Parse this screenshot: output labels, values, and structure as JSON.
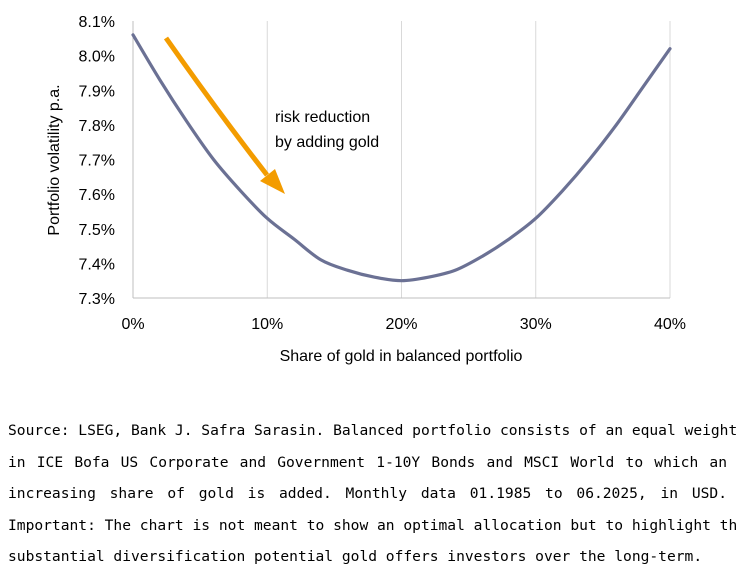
{
  "chart_data": {
    "type": "line",
    "xlabel": "Share of gold in balanced portfolio",
    "ylabel": "Portfolio volatility p.a.",
    "xlim": [
      0,
      40
    ],
    "ylim": [
      7.3,
      8.1
    ],
    "x_ticks": [
      0,
      10,
      20,
      30,
      40
    ],
    "x_tick_labels": [
      "0%",
      "10%",
      "20%",
      "30%",
      "40%"
    ],
    "y_ticks": [
      7.3,
      7.4,
      7.5,
      7.6,
      7.7,
      7.8,
      7.9,
      8.0,
      8.1
    ],
    "y_tick_labels": [
      "7.3%",
      "7.4%",
      "7.5%",
      "7.6%",
      "7.7%",
      "7.8%",
      "7.9%",
      "8.0%",
      "8.1%"
    ],
    "grid": "vertical",
    "series": [
      {
        "x": [
          0,
          2,
          4,
          6,
          8,
          10,
          12,
          14,
          16,
          18,
          20,
          22,
          24,
          26,
          28,
          30,
          32,
          34,
          36,
          38,
          40
        ],
        "y": [
          8.06,
          7.93,
          7.81,
          7.7,
          7.61,
          7.53,
          7.47,
          7.41,
          7.38,
          7.36,
          7.35,
          7.36,
          7.38,
          7.42,
          7.47,
          7.53,
          7.61,
          7.7,
          7.8,
          7.91,
          8.02
        ],
        "color": "#6b7194"
      }
    ],
    "annotation": {
      "text_lines": [
        "risk reduction",
        "by adding gold"
      ],
      "arrow_color": "#f39c00"
    }
  },
  "footnote": {
    "lines": [
      "Source: LSEG, Bank J. Safra Sarasin. Balanced portfolio consists of an equal weight",
      "in ICE Bofa US Corporate and Government 1-10Y Bonds and MSCI World to which an",
      "increasing share of gold is added. Monthly data 01.1985 to 06.2025, in USD.",
      "Important: The chart is not meant to show an optimal allocation but to highlight the",
      "substantial diversification potential gold offers investors over the long-term."
    ]
  }
}
